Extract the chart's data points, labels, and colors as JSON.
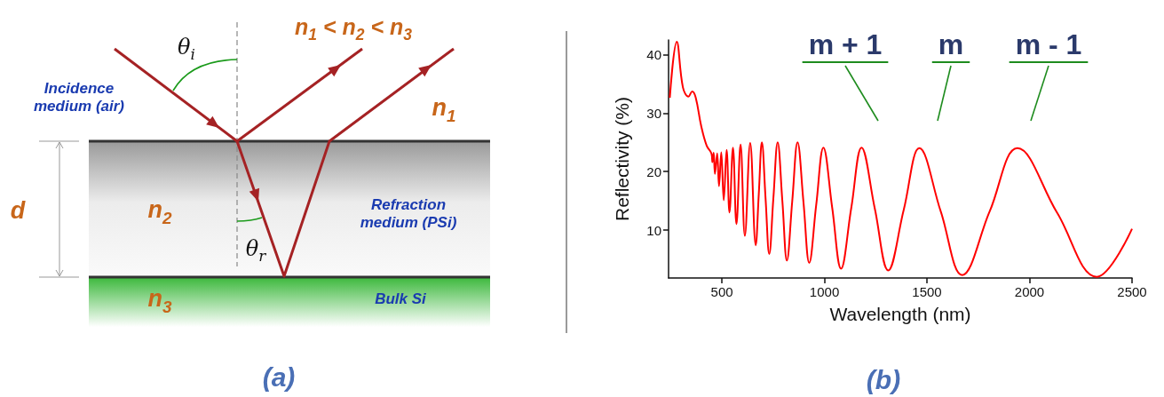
{
  "chart_data": [
    {
      "type": "other",
      "annotations": [
        "θ$_{i}$",
        "n$_{1}$ < n$_{2}$ < n$_{3}$",
        "Incidence medium (air)",
        "n$_{1}$",
        "d",
        "n$_{2}$",
        "Refraction medium (PSi)",
        "θ$_{r}$",
        "n$_{3}$",
        "Bulk Si",
        "(a)"
      ]
    },
    {
      "type": "line",
      "xlabel": "Wavelength (nm)",
      "ylabel": "Reflectivity (%)",
      "marker": "none",
      "xlim": [
        240,
        2500
      ],
      "xticks": [
        500,
        1000,
        1500,
        2000,
        2500
      ],
      "ylim": [
        1.8,
        42.5
      ],
      "yticks": [
        10,
        20,
        30,
        40
      ],
      "annotations": [
        "m + 1",
        "m",
        "m - 1",
        "(b)"
      ],
      "series": [
        {
          "color": "#ff0000",
          "x": [
            246,
            280,
            310,
            337,
            355,
            372,
            399,
            426,
            449,
            454,
            460,
            466,
            477,
            486,
            497,
            509,
            523,
            537,
            554,
            571,
            591,
            612,
            638,
            665,
            680,
            695,
            713,
            731,
            751,
            772,
            795,
            817,
            843,
            869,
            898,
            926,
            960,
            995,
            1038,
            1081,
            1131,
            1181,
            1246,
            1311,
            1387,
            1463,
            1567,
            1672,
            1806,
            1941,
            2134,
            2328,
            2500
          ],
          "values": [
            32.6,
            42.2,
            34.4,
            32.8,
            33.7,
            32.7,
            27.8,
            24.4,
            23.1,
            21.6,
            23.2,
            19.6,
            23.1,
            17.5,
            23.3,
            15.1,
            23.7,
            13.0,
            24.1,
            11.0,
            24.6,
            9.0,
            24.9,
            7.4,
            16.2,
            25.0,
            15.4,
            5.9,
            15.4,
            25.0,
            14.9,
            4.8,
            14.9,
            25.0,
            14.7,
            4.4,
            14.3,
            24.1,
            13.8,
            3.4,
            13.8,
            24.1,
            13.6,
            3.1,
            13.5,
            24.0,
            13.2,
            2.3,
            13.2,
            24.0,
            13.0,
            2.0,
            10.2
          ]
        }
      ]
    }
  ]
}
